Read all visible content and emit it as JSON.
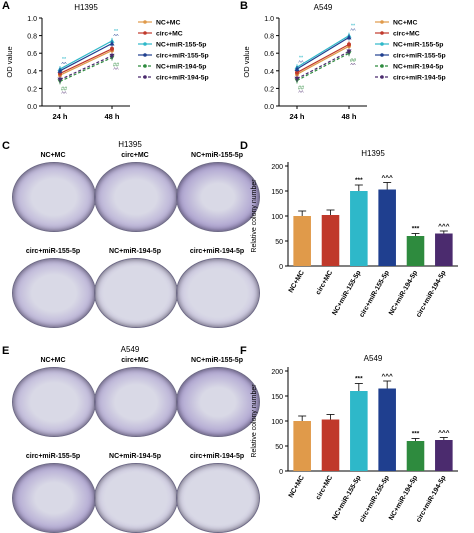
{
  "panels": {
    "A": {
      "letter": "A",
      "title": "H1395"
    },
    "B": {
      "letter": "B",
      "title": "A549"
    },
    "C": {
      "letter": "C",
      "title": "H1395"
    },
    "D": {
      "letter": "D",
      "title": "H1395"
    },
    "E": {
      "letter": "E",
      "title": "A549"
    },
    "F": {
      "letter": "F",
      "title": "A549"
    }
  },
  "dish_labels": {
    "C": [
      "NC+MC",
      "circ+MC",
      "NC+miR-155-5p",
      "circ+miR-155-5p",
      "NC+miR-194-5p",
      "circ+miR-194-5p"
    ],
    "E": [
      "NC+MC",
      "circ+MC",
      "NC+miR-155-5p",
      "circ+miR-155-5p",
      "NC+miR-194-5p",
      "circ+miR-194-5p"
    ]
  },
  "dish_density": {
    "C": [
      0.55,
      0.6,
      0.8,
      0.55,
      0.12,
      0.25
    ],
    "E": [
      0.5,
      0.6,
      0.75,
      0.7,
      0.18,
      0.1
    ]
  },
  "colors": {
    "NC+MC": "#e09a4a",
    "circ+MC": "#c0392b",
    "NC+miR-155-5p": "#2eb8c9",
    "circ+miR-155-5p": "#1f3f8f",
    "NC+miR-194-5p": "#2e8b3e",
    "circ+miR-194-5p": "#4b2b6e",
    "dish_bg": "#d9d9e6",
    "colony": "#5a3fa3"
  },
  "chart_data": [
    {
      "id": "A",
      "type": "line",
      "title": "H1395",
      "ylabel": "OD value",
      "categories": [
        "24 h",
        "48 h"
      ],
      "ylim": [
        0.0,
        1.0
      ],
      "yticks": [
        "0.0",
        "0.2",
        "0.4",
        "0.6",
        "0.8",
        "1.0"
      ],
      "legend_position": "right",
      "series": [
        {
          "name": "NC+MC",
          "values": [
            0.35,
            0.63
          ],
          "style": "solid",
          "marker": "circle"
        },
        {
          "name": "circ+MC",
          "values": [
            0.37,
            0.65
          ],
          "style": "solid",
          "marker": "circle"
        },
        {
          "name": "NC+miR-155-5p",
          "values": [
            0.42,
            0.74
          ],
          "style": "solid",
          "marker": "triangle"
        },
        {
          "name": "circ+miR-155-5p",
          "values": [
            0.4,
            0.71
          ],
          "style": "solid",
          "marker": "triangle"
        },
        {
          "name": "NC+miR-194-5p",
          "values": [
            0.28,
            0.55
          ],
          "style": "dashed",
          "marker": "triangle-down"
        },
        {
          "name": "circ+miR-194-5p",
          "values": [
            0.3,
            0.57
          ],
          "style": "dashed",
          "marker": "triangle-down"
        }
      ],
      "annotations": {
        "high": [
          "**",
          "^^"
        ],
        "low": [
          "##",
          "^^"
        ]
      }
    },
    {
      "id": "B",
      "type": "line",
      "title": "A549",
      "ylabel": "OD value",
      "categories": [
        "24 h",
        "48 h"
      ],
      "ylim": [
        0.0,
        1.0
      ],
      "yticks": [
        "0.0",
        "0.2",
        "0.4",
        "0.6",
        "0.8",
        "1.0"
      ],
      "legend_position": "right",
      "series": [
        {
          "name": "NC+MC",
          "values": [
            0.36,
            0.68
          ],
          "style": "solid",
          "marker": "circle"
        },
        {
          "name": "circ+MC",
          "values": [
            0.38,
            0.7
          ],
          "style": "solid",
          "marker": "circle"
        },
        {
          "name": "NC+miR-155-5p",
          "values": [
            0.44,
            0.8
          ],
          "style": "solid",
          "marker": "triangle"
        },
        {
          "name": "circ+miR-155-5p",
          "values": [
            0.42,
            0.78
          ],
          "style": "solid",
          "marker": "triangle"
        },
        {
          "name": "NC+miR-194-5p",
          "values": [
            0.29,
            0.6
          ],
          "style": "dashed",
          "marker": "triangle-down"
        },
        {
          "name": "circ+miR-194-5p",
          "values": [
            0.31,
            0.62
          ],
          "style": "dashed",
          "marker": "triangle-down"
        }
      ],
      "annotations": {
        "high": [
          "**",
          "^^"
        ],
        "low": [
          "##",
          "^^"
        ]
      }
    },
    {
      "id": "D",
      "type": "bar",
      "title": "H1395",
      "ylabel": "Relative colony number",
      "categories": [
        "NC+MC",
        "circ+MC",
        "NC+miR-155-5p",
        "circ+miR-155-5p",
        "NC+miR-194-5p",
        "circ+miR-194-5p"
      ],
      "values": [
        100,
        102,
        150,
        153,
        60,
        65
      ],
      "errors": [
        10,
        10,
        12,
        14,
        5,
        5
      ],
      "sig": [
        "",
        "",
        "***",
        "^^^",
        "***",
        "^^^"
      ],
      "ylim": [
        0,
        200
      ],
      "yticks": [
        "0",
        "50",
        "100",
        "150",
        "200"
      ]
    },
    {
      "id": "F",
      "type": "bar",
      "title": "A549",
      "ylabel": "Relative colony number",
      "categories": [
        "NC+MC",
        "circ+MC",
        "NC+miR-155-5p",
        "circ+miR-155-5p",
        "NC+miR-194-5p",
        "circ+miR-194-5p"
      ],
      "values": [
        100,
        103,
        160,
        165,
        60,
        62
      ],
      "errors": [
        10,
        10,
        15,
        15,
        5,
        5
      ],
      "sig": [
        "",
        "",
        "***",
        "^^^",
        "***",
        "^^^"
      ],
      "ylim": [
        0,
        200
      ],
      "yticks": [
        "0",
        "50",
        "100",
        "150",
        "200"
      ]
    }
  ]
}
